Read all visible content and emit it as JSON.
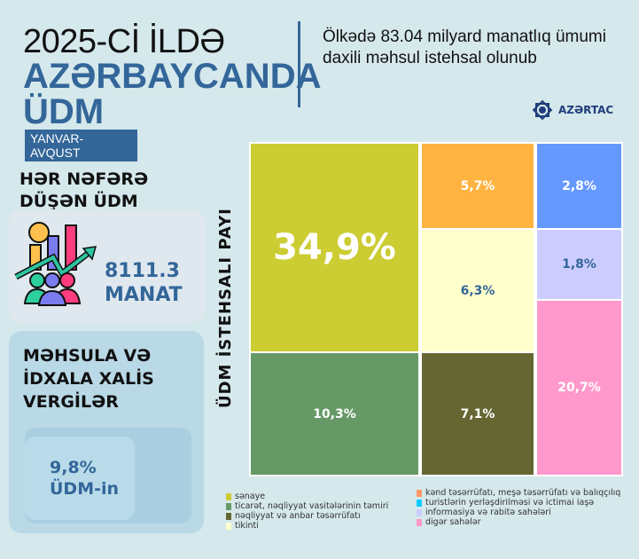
{
  "header": {
    "title_line1": "2025-Cİ İLDƏ",
    "title_line2": "AZƏRBAYCANDA",
    "title_line3": "ÜDM",
    "period": "YANVAR-AVQUST",
    "subtitle": "Ölkədə 83.04 milyard manatlıq ümumi daxili məhsul istehsal olunub",
    "logo": "AZƏRTAC",
    "accent": "#336699"
  },
  "per_capita": {
    "heading_line1": "HƏR NƏFƏRƏ",
    "heading_line2": "DÜŞƏN ÜDM",
    "value": "8111.3",
    "unit": "MANAT",
    "icon": "people-growth-chart-icon"
  },
  "taxes": {
    "heading_line1": "MƏHSULA VƏ",
    "heading_line2": "İDXALA XALİS",
    "heading_line3": "VERGİLƏR",
    "value": "9,8%",
    "unit": "ÜDM-in"
  },
  "chart_data": {
    "type": "treemap",
    "ylabel": "ÜDM İSTEHSALI PAYI",
    "cells": [
      {
        "label": "sənaye",
        "value": 34.9,
        "text": "34,9%",
        "color": "#cccc33"
      },
      {
        "label": "ticarət, nəqliyyat vasitələrinin təmiri",
        "value": 10.3,
        "text": "10,3%",
        "color": "#669966"
      },
      {
        "label": "kənd təsərrüfatı, meşə təsərrüfatı və balıqçılıq",
        "value": 5.7,
        "text": "5,7%",
        "color": "#ffb340"
      },
      {
        "label": "tikinti",
        "value": 6.3,
        "text": "6,3%",
        "color": "#ffffcc"
      },
      {
        "label": "nəqliyyat və anbar təsərrüfatı",
        "value": 7.1,
        "text": "7,1%",
        "color": "#666633"
      },
      {
        "label": "turistlərin yerləşdirilməsi və ictimai iaşə",
        "value": 2.8,
        "text": "2,8%",
        "color": "#6699ff"
      },
      {
        "label": "informasiya və rabitə sahələri",
        "value": 1.8,
        "text": "1,8%",
        "color": "#ccccff"
      },
      {
        "label": "digər sahələr",
        "value": 20.7,
        "text": "20,7%",
        "color": "#ff99cc"
      }
    ],
    "legend": [
      {
        "label": "sənaye",
        "color": "#cccc33"
      },
      {
        "label": "ticarət, nəqliyyat vasitələrinin təmiri",
        "color": "#669966"
      },
      {
        "label": "nəqliyyat və anbar təsərrüfatı",
        "color": "#666633"
      },
      {
        "label": "tikinti",
        "color": "#ffffcc"
      },
      {
        "label": "kənd təsərrüfatı, meşə təsərrüfatı və balıqçılıq",
        "color": "#ff9966"
      },
      {
        "label": "turistlərin yerləşdirilməsi və ictimai iaşə",
        "color": "#00ccff"
      },
      {
        "label": "informasiya və rabitə sahələri",
        "color": "#ccccff"
      },
      {
        "label": "digər sahələr",
        "color": "#ff99cc"
      }
    ]
  }
}
